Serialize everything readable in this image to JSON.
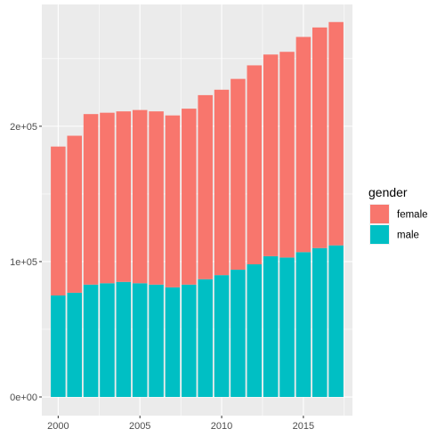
{
  "chart_data": {
    "type": "bar",
    "stacked": true,
    "x": [
      2000,
      2001,
      2002,
      2003,
      2004,
      2005,
      2006,
      2007,
      2008,
      2009,
      2010,
      2011,
      2012,
      2013,
      2014,
      2015,
      2016,
      2017
    ],
    "series": [
      {
        "name": "female",
        "color": "#F8766D",
        "values": [
          110000,
          116000,
          126000,
          126000,
          126000,
          128000,
          128000,
          127000,
          130000,
          136000,
          137000,
          141000,
          147000,
          149000,
          152000,
          159000,
          163000,
          165000
        ]
      },
      {
        "name": "male",
        "color": "#00BFC4",
        "values": [
          75000,
          77000,
          83000,
          84000,
          85000,
          84000,
          83000,
          81000,
          83000,
          87000,
          90000,
          94000,
          98000,
          104000,
          103000,
          107000,
          110000,
          112000
        ]
      }
    ],
    "x_ticks": [
      {
        "value": 2000,
        "label": "2000"
      },
      {
        "value": 2005,
        "label": "2005"
      },
      {
        "value": 2010,
        "label": "2010"
      },
      {
        "value": 2015,
        "label": "2015"
      }
    ],
    "y_ticks": [
      {
        "value": 0,
        "label": "0e+00"
      },
      {
        "value": 100000,
        "label": "1e+05"
      },
      {
        "value": 200000,
        "label": "2e+05"
      }
    ],
    "xlim": [
      1999.0,
      2018.0
    ],
    "ylim": [
      -13800,
      290000
    ],
    "xlabel": "",
    "ylabel": "",
    "title": "",
    "grid": true,
    "legend": {
      "title": "gender",
      "position": "right",
      "entries": [
        {
          "label": "female",
          "color": "#F8766D"
        },
        {
          "label": "male",
          "color": "#00BFC4"
        }
      ]
    },
    "panel_color": "#EBEBEB"
  }
}
